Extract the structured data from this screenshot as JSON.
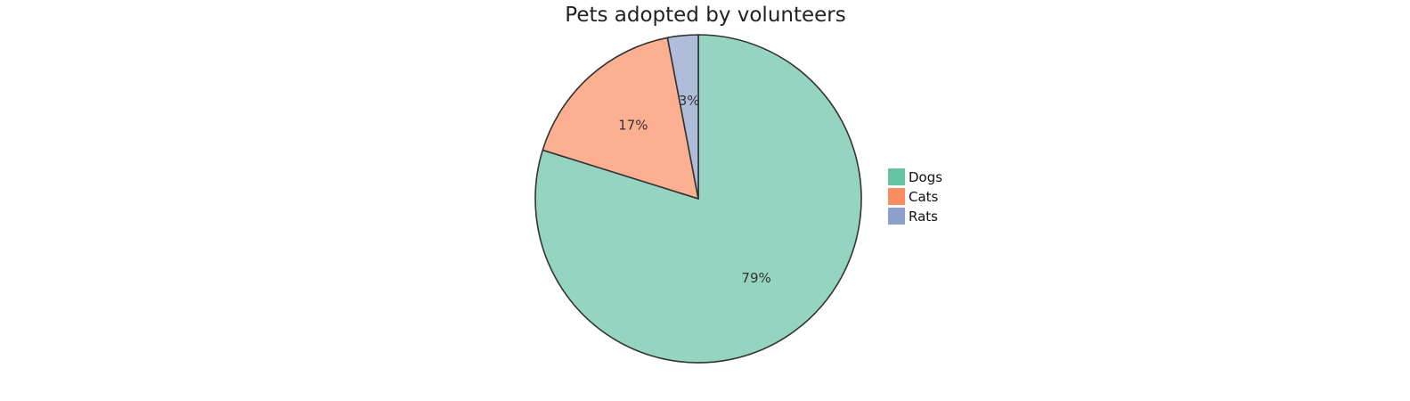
{
  "chart_data": {
    "type": "pie",
    "title": "Pets adopted by volunteers",
    "categories": [
      "Dogs",
      "Cats",
      "Rats"
    ],
    "values": [
      79,
      17,
      3
    ],
    "labels": [
      "79%",
      "17%",
      "3%"
    ],
    "colors": [
      "#66c2a5",
      "#fc8d62",
      "#8da0cb"
    ],
    "legend": {
      "position": "right"
    }
  }
}
